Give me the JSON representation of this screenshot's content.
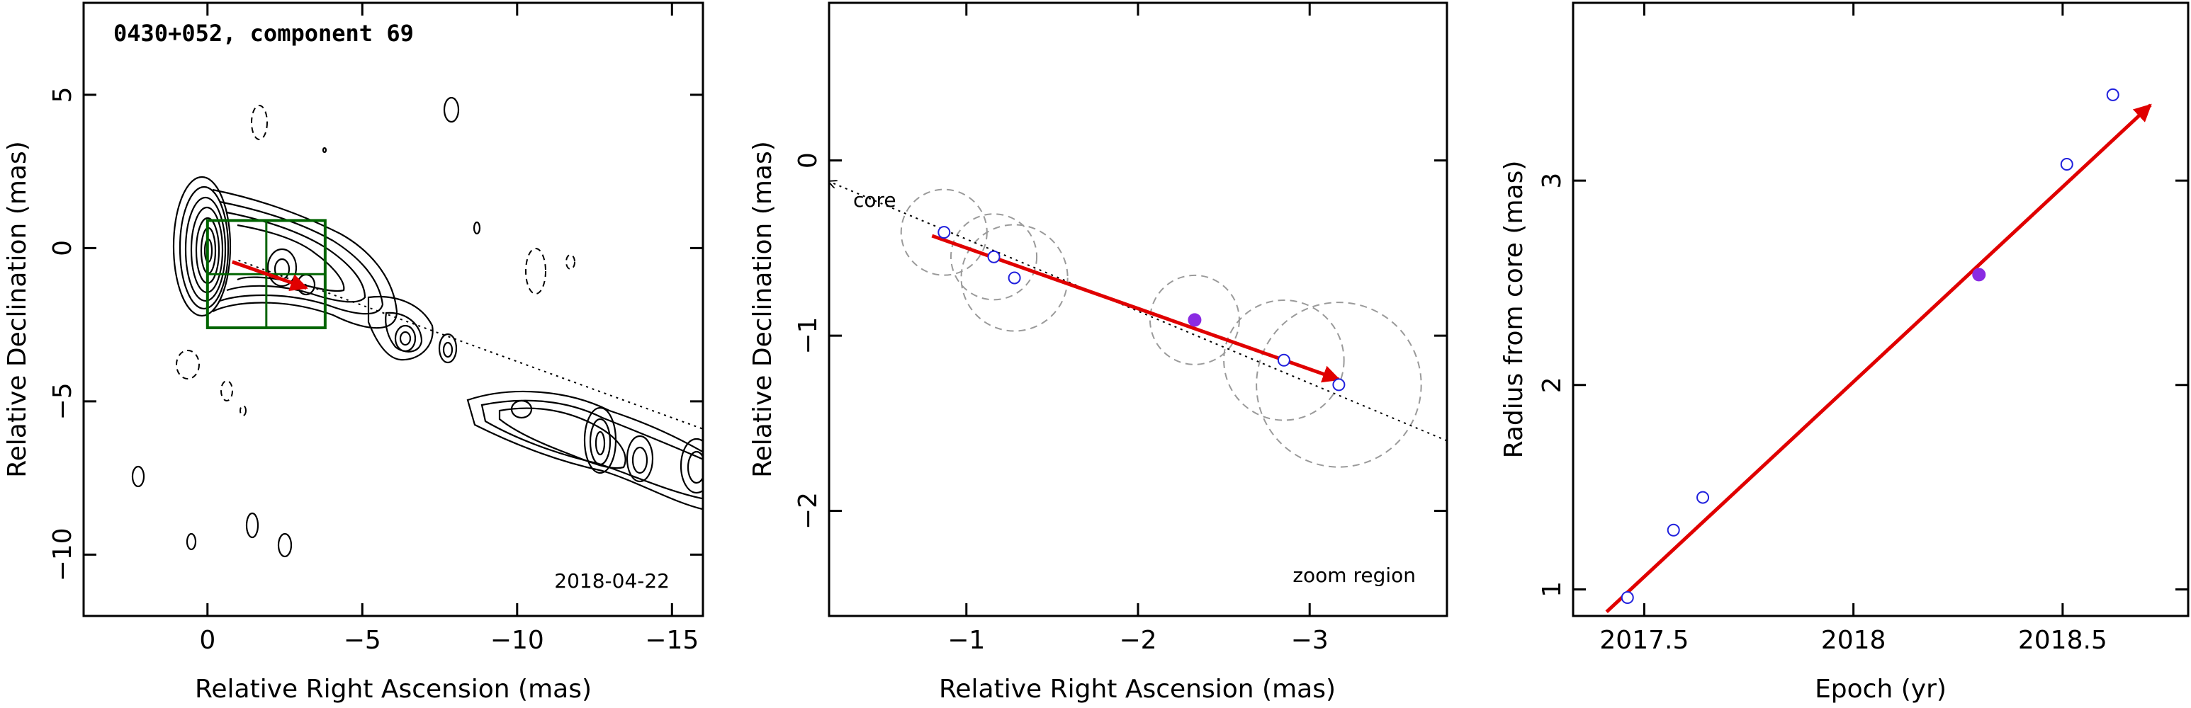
{
  "colors": {
    "model_fit": "#e00000",
    "open_marker": "#2020dd",
    "filled_marker": "#8a2be2",
    "zoom_box": "#006400",
    "circle": "#9a9a9a"
  },
  "chart_data": [
    {
      "type": "contour",
      "title": "0430+052, component 69",
      "xlabel": "Relative Right Ascension (mas)",
      "ylabel": "Relative Declination (mas)",
      "epoch_label": "2018-04-22",
      "xlim": [
        4,
        -16
      ],
      "ylim": [
        -12,
        8
      ],
      "xticks": [
        0,
        -5,
        -10,
        -15
      ],
      "xtick_labels": [
        "0",
        "−5",
        "−10",
        "−15"
      ],
      "yticks": [
        5,
        0,
        -5,
        -10
      ],
      "ytick_labels": [
        "5",
        "0",
        "−5",
        "−10"
      ],
      "zoom_box": {
        "x": [
          0,
          -3.8
        ],
        "y": [
          0.9,
          -2.6
        ]
      },
      "trajectory": {
        "from": [
          -0.8,
          -0.45
        ],
        "to": [
          -3.2,
          -1.3
        ]
      },
      "jet_axis": {
        "from": [
          -1.0,
          -0.4
        ],
        "to": [
          -16,
          -5.9
        ]
      }
    },
    {
      "type": "scatter",
      "xlabel": "Relative Right Ascension (mas)",
      "ylabel": "Relative Declination (mas)",
      "annotation": "zoom region",
      "core_label": "core",
      "xlim": [
        -0.2,
        -3.8
      ],
      "ylim": [
        -2.6,
        0.9
      ],
      "xticks": [
        -1,
        -2,
        -3
      ],
      "xtick_labels": [
        "−1",
        "−2",
        "−3"
      ],
      "yticks": [
        0,
        -1,
        -2
      ],
      "ytick_labels": [
        "0",
        "−1",
        "−2"
      ],
      "open_points": [
        {
          "x": -0.87,
          "y": -0.41,
          "r": 0.25
        },
        {
          "x": -1.16,
          "y": -0.55,
          "r": 0.25
        },
        {
          "x": -1.28,
          "y": -0.67,
          "r": 0.31
        },
        {
          "x": -2.85,
          "y": -1.14,
          "r": 0.35
        },
        {
          "x": -3.17,
          "y": -1.28,
          "r": 0.48
        }
      ],
      "filled_points": [
        {
          "x": -2.33,
          "y": -0.91,
          "r": 0.26
        }
      ],
      "fit_arrow": {
        "from": [
          -0.8,
          -0.43
        ],
        "to": [
          -3.17,
          -1.25
        ]
      },
      "axis_line": {
        "from": [
          -0.2,
          -0.12
        ],
        "to": [
          -3.8,
          -1.6
        ]
      }
    },
    {
      "type": "scatter",
      "xlabel": "Epoch (yr)",
      "ylabel": "Radius from core (mas)",
      "xlim": [
        2017.33,
        2018.8
      ],
      "ylim": [
        0.87,
        3.87
      ],
      "xticks": [
        2017.5,
        2018,
        2018.5
      ],
      "xtick_labels": [
        "2017.5",
        "2018",
        "2018.5"
      ],
      "yticks": [
        1,
        2,
        3
      ],
      "ytick_labels": [
        "1",
        "2",
        "3"
      ],
      "open_points": [
        {
          "x": 2017.46,
          "y": 0.96
        },
        {
          "x": 2017.57,
          "y": 1.29
        },
        {
          "x": 2017.64,
          "y": 1.45
        },
        {
          "x": 2018.51,
          "y": 3.08
        },
        {
          "x": 2018.62,
          "y": 3.42
        }
      ],
      "filled_points": [
        {
          "x": 2018.3,
          "y": 2.54
        }
      ],
      "fit_arrow": {
        "from": [
          2017.41,
          0.89
        ],
        "to": [
          2018.71,
          3.37
        ]
      }
    }
  ]
}
